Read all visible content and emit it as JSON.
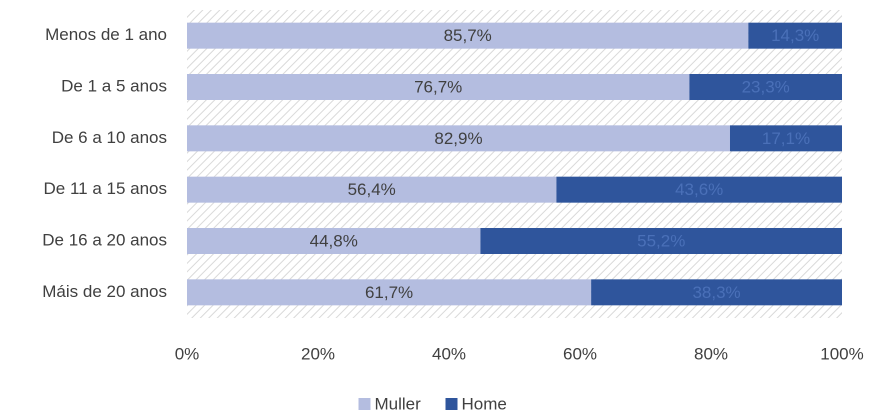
{
  "chart_data": {
    "type": "stacked-bar-horizontal",
    "categories": [
      "Menos de 1 ano",
      "De 1 a 5 anos",
      "De 6 a 10 anos",
      "De 11 a 15 anos",
      "De 16 a 20 anos",
      "Máis de 20 anos"
    ],
    "series": [
      {
        "name": "Muller",
        "color": "#b4bde0",
        "label_color": "#404040",
        "values": [
          85.7,
          76.7,
          82.9,
          56.4,
          44.8,
          61.7
        ],
        "value_labels": [
          "85,7%",
          "76,7%",
          "82,9%",
          "56,4%",
          "44,8%",
          "61,7%"
        ]
      },
      {
        "name": "Home",
        "color": "#2f559c",
        "label_color": "#4a70b8",
        "values": [
          14.3,
          23.3,
          17.1,
          43.6,
          55.2,
          38.3
        ],
        "value_labels": [
          "14,3%",
          "23,3%",
          "17,1%",
          "43,6%",
          "55,2%",
          "38,3%"
        ]
      }
    ],
    "xlim": [
      0,
      100
    ],
    "xticks": [
      {
        "value": 0,
        "label": "0%"
      },
      {
        "value": 20,
        "label": "20%"
      },
      {
        "value": 40,
        "label": "40%"
      },
      {
        "value": 60,
        "label": "60%"
      },
      {
        "value": 80,
        "label": "80%"
      },
      {
        "value": 100,
        "label": "100%"
      }
    ],
    "legend": "bottom"
  }
}
